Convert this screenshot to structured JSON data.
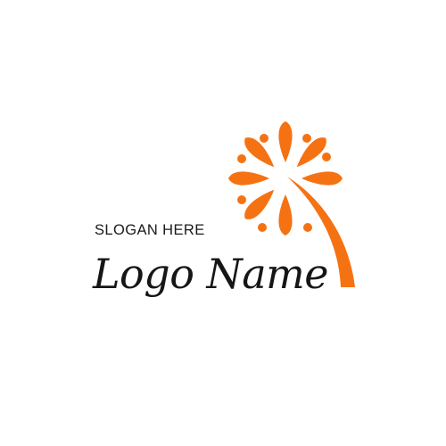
{
  "brand": {
    "slogan": "SLOGAN HERE",
    "name": "Logo Name"
  },
  "colors": {
    "background": "#ffffff",
    "accent": "#f57213",
    "text": "#161616"
  },
  "icons": {
    "emblem": "dandelion-firework-icon"
  }
}
